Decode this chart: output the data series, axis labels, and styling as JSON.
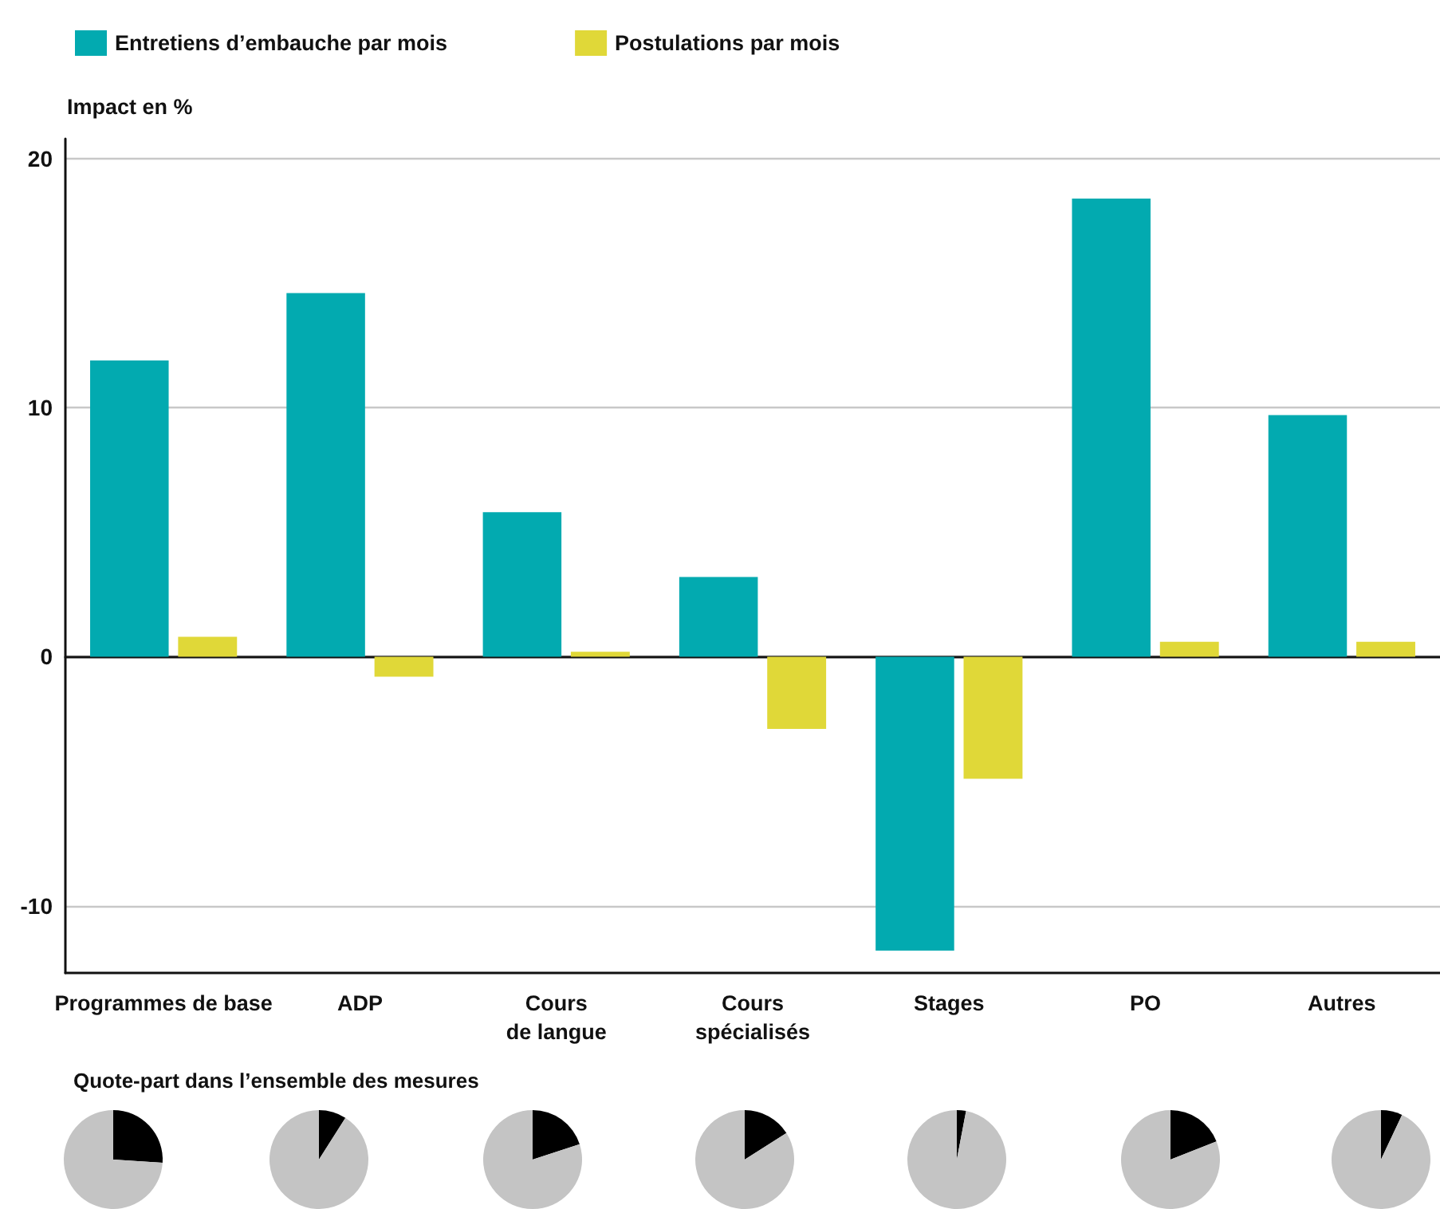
{
  "chart_data": [
    {
      "type": "bar",
      "ylabel": "Impact en %",
      "categories": [
        "Programmes de base",
        "ADP",
        "Cours\nde langue",
        "Cours\nspécialisés",
        "Stages",
        "PO",
        "Autres"
      ],
      "series": [
        {
          "name": "Entretiens d’embauche par mois",
          "color": "#02aab0",
          "values": [
            11.9,
            14.6,
            5.8,
            3.2,
            -11.8,
            18.4,
            9.7
          ]
        },
        {
          "name": "Postulations par mois",
          "color": "#e0d838",
          "values": [
            0.8,
            -0.8,
            0.2,
            -2.9,
            -4.9,
            0.6,
            0.6
          ]
        }
      ],
      "ylim": [
        -12.7,
        20.8
      ],
      "yticks": [
        -10,
        0,
        10,
        20
      ],
      "grid": "y",
      "legend": "top left"
    },
    {
      "type": "pie",
      "title": "Quote-part dans l’ensemble des mesures",
      "categories": [
        null,
        null
      ],
      "values": [
        26,
        74
      ],
      "colors": [
        "#000000",
        "#c4c4c4"
      ]
    },
    {
      "type": "pie",
      "categories": [
        null,
        null
      ],
      "values": [
        9,
        91
      ],
      "colors": [
        "#000000",
        "#c4c4c4"
      ]
    },
    {
      "type": "pie",
      "categories": [
        null,
        null
      ],
      "values": [
        20,
        80
      ],
      "colors": [
        "#000000",
        "#c4c4c4"
      ]
    },
    {
      "type": "pie",
      "categories": [
        null,
        null
      ],
      "values": [
        16,
        84
      ],
      "colors": [
        "#000000",
        "#c4c4c4"
      ]
    },
    {
      "type": "pie",
      "categories": [
        null,
        null
      ],
      "values": [
        3,
        97
      ],
      "colors": [
        "#000000",
        "#c4c4c4"
      ]
    },
    {
      "type": "pie",
      "categories": [
        null,
        null
      ],
      "values": [
        19,
        81
      ],
      "colors": [
        "#000000",
        "#c4c4c4"
      ]
    },
    {
      "type": "pie",
      "categories": [
        null,
        null
      ],
      "values": [
        7,
        93
      ],
      "colors": [
        "#000000",
        "#c4c4c4"
      ]
    }
  ]
}
